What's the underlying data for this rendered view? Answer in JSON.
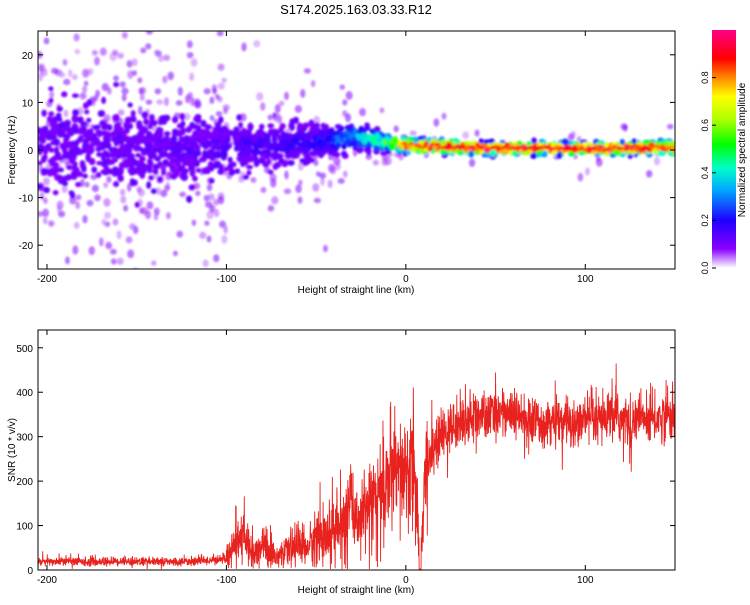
{
  "figure": {
    "title": "S174.2025.163.03.33.R12"
  },
  "chart_data": [
    {
      "type": "heatmap",
      "title": "S174.2025.163.03.33.R12",
      "xlabel": "Height of straight line (km)",
      "ylabel": "Frequency (Hz)",
      "xlim": [
        -205,
        150
      ],
      "ylim": [
        -25,
        25
      ],
      "x_ticks": [
        -200,
        -100,
        0,
        100
      ],
      "y_ticks": [
        -20,
        -10,
        0,
        10,
        20
      ],
      "grid": false,
      "colorbar": {
        "label": "Normalized spectral amplitude",
        "range": [
          0,
          1
        ],
        "ticks": [
          0.0,
          0.2,
          0.4,
          0.6,
          0.8
        ],
        "colormap": "rainbow (purple-blue-cyan-green-yellow-red-magenta)"
      },
      "ridge_profile": [
        {
          "x": -200,
          "freq": 1.0,
          "spread": 8,
          "amplitude": 0.12
        },
        {
          "x": -150,
          "freq": 0.5,
          "spread": 7,
          "amplitude": 0.12
        },
        {
          "x": -100,
          "freq": 0.5,
          "spread": 5,
          "amplitude": 0.15
        },
        {
          "x": -50,
          "freq": 1.5,
          "spread": 3,
          "amplitude": 0.2
        },
        {
          "x": -30,
          "freq": 3.0,
          "spread": 2.5,
          "amplitude": 0.35
        },
        {
          "x": -10,
          "freq": 1.5,
          "spread": 1.5,
          "amplitude": 0.55
        },
        {
          "x": 0,
          "freq": 1.0,
          "spread": 1.2,
          "amplitude": 0.9
        },
        {
          "x": 50,
          "freq": 0.3,
          "spread": 1.0,
          "amplitude": 0.95
        },
        {
          "x": 100,
          "freq": 0.3,
          "spread": 1.0,
          "amplitude": 0.95
        },
        {
          "x": 150,
          "freq": 0.5,
          "spread": 1.2,
          "amplitude": 0.9
        }
      ]
    },
    {
      "type": "line",
      "xlabel": "Height of straight line (km)",
      "ylabel": "SNR (10 * v/v)",
      "xlim": [
        -205,
        150
      ],
      "ylim": [
        0,
        540
      ],
      "x_ticks": [
        -200,
        -100,
        0,
        100
      ],
      "y_ticks": [
        0,
        100,
        200,
        300,
        400,
        500
      ],
      "grid": false,
      "series": [
        {
          "color": "#e8221e",
          "x": [
            -205,
            -190,
            -175,
            -160,
            -145,
            -130,
            -115,
            -100,
            -95,
            -90,
            -85,
            -80,
            -75,
            -70,
            -65,
            -60,
            -55,
            -50,
            -45,
            -40,
            -35,
            -30,
            -25,
            -20,
            -15,
            -10,
            -5,
            0,
            5,
            8,
            12,
            15,
            20,
            25,
            30,
            35,
            40,
            45,
            50,
            55,
            60,
            65,
            70,
            75,
            80,
            85,
            90,
            95,
            100,
            105,
            110,
            115,
            120,
            125,
            130,
            135,
            140,
            145,
            150
          ],
          "y": [
            18,
            20,
            18,
            20,
            19,
            18,
            20,
            25,
            60,
            70,
            50,
            55,
            40,
            30,
            45,
            60,
            50,
            70,
            80,
            90,
            110,
            140,
            110,
            180,
            170,
            210,
            200,
            220,
            230,
            20,
            250,
            270,
            300,
            320,
            330,
            340,
            350,
            340,
            355,
            360,
            345,
            340,
            330,
            335,
            340,
            325,
            335,
            330,
            340,
            330,
            335,
            345,
            340,
            330,
            345,
            335,
            340,
            350,
            345
          ]
        }
      ]
    }
  ]
}
